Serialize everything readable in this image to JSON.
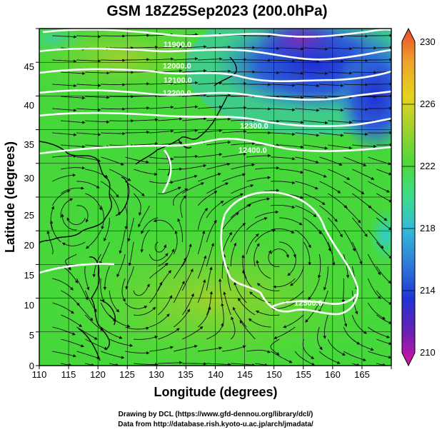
{
  "title": "GSM 18Z25Sep2023 (200.0hPa)",
  "xlabel": "Longitude (degrees)",
  "ylabel": "Latitude  (degrees)",
  "credit": {
    "line1": "Drawing by DCL (https://www.gfd-dennou.org/library/dcl/)",
    "line2": "Data from http://database.rish.kyoto-u.ac.jp/arch/jmadata/"
  },
  "chart_data": {
    "type": "heatmap",
    "x_range": [
      110,
      170
    ],
    "y_range": [
      0,
      50
    ],
    "x_ticks": [
      "110",
      "115",
      "120",
      "125",
      "130",
      "135",
      "140",
      "145",
      "150",
      "155",
      "160",
      "165"
    ],
    "y_ticks": [
      "0",
      "5",
      "10",
      "15",
      "20",
      "25",
      "30",
      "35",
      "40",
      "45"
    ],
    "grid": true,
    "colorbar": {
      "ticks": [
        "230",
        "226",
        "222",
        "218",
        "214",
        "210"
      ],
      "range": [
        210,
        230
      ],
      "colors": [
        "#d5169f",
        "#6a1fb4",
        "#1f35d4",
        "#2f7bd8",
        "#33b8d8",
        "#3cdc8e",
        "#4fd83a",
        "#9ed22e",
        "#e6d21e",
        "#eda42a",
        "#ec4a2d"
      ]
    },
    "contour_labels": [
      "11900.0",
      "12000.0",
      "12100.0",
      "12200.0",
      "12300.0",
      "12400.0",
      "12500.0"
    ]
  }
}
